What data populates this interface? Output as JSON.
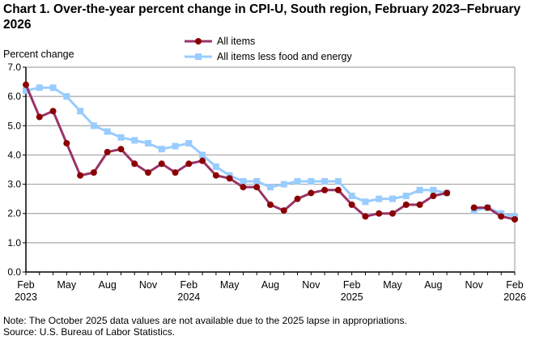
{
  "chart_data": {
    "type": "line",
    "title": "Chart 1. Over-the-year percent change in CPI-U, South region, February 2023–February 2026",
    "ylabel": "Percent change",
    "xlabel": "",
    "ylim": [
      0,
      7
    ],
    "yticks": [
      "0.0",
      "1.0",
      "2.0",
      "3.0",
      "4.0",
      "5.0",
      "6.0",
      "7.0"
    ],
    "grid": true,
    "legend": "top-center",
    "x": [
      "Feb 2023",
      "Mar 2023",
      "Apr 2023",
      "May 2023",
      "Jun 2023",
      "Jul 2023",
      "Aug 2023",
      "Sep 2023",
      "Oct 2023",
      "Nov 2023",
      "Dec 2023",
      "Jan 2024",
      "Feb 2024",
      "Mar 2024",
      "Apr 2024",
      "May 2024",
      "Jun 2024",
      "Jul 2024",
      "Aug 2024",
      "Sep 2024",
      "Oct 2024",
      "Nov 2024",
      "Dec 2024",
      "Jan 2025",
      "Feb 2025",
      "Mar 2025",
      "Apr 2025",
      "May 2025",
      "Jun 2025",
      "Jul 2025",
      "Aug 2025",
      "Sep 2025",
      "Oct 2025",
      "Nov 2025",
      "Dec 2025",
      "Jan 2026",
      "Feb 2026"
    ],
    "xticks": [
      {
        "month": "Feb",
        "year": "2023",
        "index": 0
      },
      {
        "month": "May",
        "year": "",
        "index": 3
      },
      {
        "month": "Aug",
        "year": "",
        "index": 6
      },
      {
        "month": "Nov",
        "year": "",
        "index": 9
      },
      {
        "month": "Feb",
        "year": "2024",
        "index": 12
      },
      {
        "month": "May",
        "year": "",
        "index": 15
      },
      {
        "month": "Aug",
        "year": "",
        "index": 18
      },
      {
        "month": "Nov",
        "year": "",
        "index": 21
      },
      {
        "month": "Feb",
        "year": "2025",
        "index": 24
      },
      {
        "month": "May",
        "year": "",
        "index": 27
      },
      {
        "month": "Aug",
        "year": "",
        "index": 30
      },
      {
        "month": "Nov",
        "year": "",
        "index": 33
      },
      {
        "month": "Feb",
        "year": "2026",
        "index": 36
      }
    ],
    "series": [
      {
        "name": "All items",
        "color": "#8B0000",
        "line_color": "#993366",
        "marker": "circle",
        "values": [
          6.4,
          5.3,
          5.5,
          4.4,
          3.3,
          3.4,
          4.1,
          4.2,
          3.7,
          3.4,
          3.7,
          3.4,
          3.7,
          3.8,
          3.3,
          3.2,
          2.9,
          2.9,
          2.3,
          2.1,
          2.5,
          2.7,
          2.8,
          2.8,
          2.3,
          1.9,
          2.0,
          2.0,
          2.3,
          2.3,
          2.6,
          2.7,
          null,
          2.2,
          2.2,
          1.9,
          1.8
        ]
      },
      {
        "name": "All items less food and energy",
        "color": "#99CCFF",
        "line_color": "#99CCFF",
        "marker": "square",
        "values": [
          6.2,
          6.3,
          6.3,
          6.0,
          5.5,
          5.0,
          4.8,
          4.6,
          4.5,
          4.4,
          4.2,
          4.3,
          4.4,
          4.0,
          3.6,
          3.3,
          3.1,
          3.1,
          2.9,
          3.0,
          3.1,
          3.1,
          3.1,
          3.1,
          2.6,
          2.4,
          2.5,
          2.5,
          2.6,
          2.8,
          2.8,
          2.7,
          null,
          2.1,
          2.2,
          2.0,
          1.9
        ]
      }
    ]
  },
  "notes": {
    "note": "Note: The October 2025 data values  are not available  due to the 2025 lapse in appropriations.",
    "source": "Source: U.S. Bureau of Labor Statistics."
  }
}
